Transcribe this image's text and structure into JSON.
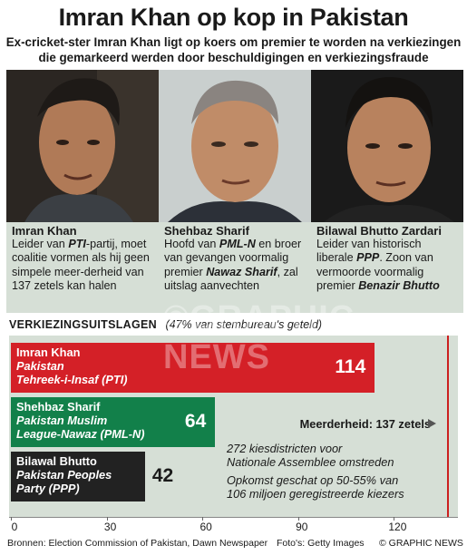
{
  "title": "Imran Khan op kop in Pakistan",
  "subtitle_line1": "Ex-cricket-ster Imran Khan ligt op koers om premier te worden na verkiezingen",
  "subtitle_line2": "die gemarkeerd werden door beschuldigingen en verkiezingsfraude",
  "candidates": [
    {
      "name": "Imran Khan",
      "desc_pre": "Leider van ",
      "desc_em": "PTI",
      "desc_post": "-partij, moet coalitie vormen als hij geen simpele meer-derheid van 137 zetels kan halen"
    },
    {
      "name": "Shehbaz Sharif",
      "desc_pre": "Hoofd van ",
      "desc_em": "PML-N",
      "desc_post": " en broer van gevangen voormalig premier",
      "desc_em2": "Nawaz Sharif",
      "desc_post2": ", zal uitslag aanvechten"
    },
    {
      "name": "Bilawal Bhutto Zardari",
      "desc_pre": "Leider van historisch liberale ",
      "desc_em": "PPP",
      "desc_post": ". Zoon van vermoorde voormalig premier",
      "desc_em2": "Benazir Bhutto",
      "desc_post2": ""
    }
  ],
  "section_title": "Verkiezingsuitslagen",
  "section_note": "(47% van stembureau's geteld)",
  "chart_data": {
    "type": "bar",
    "orientation": "horizontal",
    "categories": [
      "Imran Khan",
      "Shehbaz Sharif",
      "Bilawal Bhutto"
    ],
    "parties": [
      "Pakistan\nTehreek-i-Insaf (PTI)",
      "Pakistan Muslim\nLeague-Nawaz (PML-N)",
      "Pakistan Peoples\nParty (PPP)"
    ],
    "values": [
      114,
      64,
      42
    ],
    "colors": [
      "#d42027",
      "#12804a",
      "#222222"
    ],
    "xlim": [
      0,
      138
    ],
    "xticks": [
      0,
      30,
      60,
      90,
      120
    ],
    "majority_value": 137,
    "majority_label": "Meerderheid: 137 zetels"
  },
  "info_text_1": "272 kiesdistricten voor\nNationale Assemblee omstreden",
  "info_text_2": "Opkomst geschat op 50-55% van\n106 miljoen geregistreerde kiezers",
  "sources": "Bronnen: Election Commission of Pakistan, Dawn Newspaper",
  "photo_credit": "Foto's: Getty Images",
  "copyright": "© GRAPHIC NEWS",
  "watermark": "©GRAPHIC NEWS"
}
